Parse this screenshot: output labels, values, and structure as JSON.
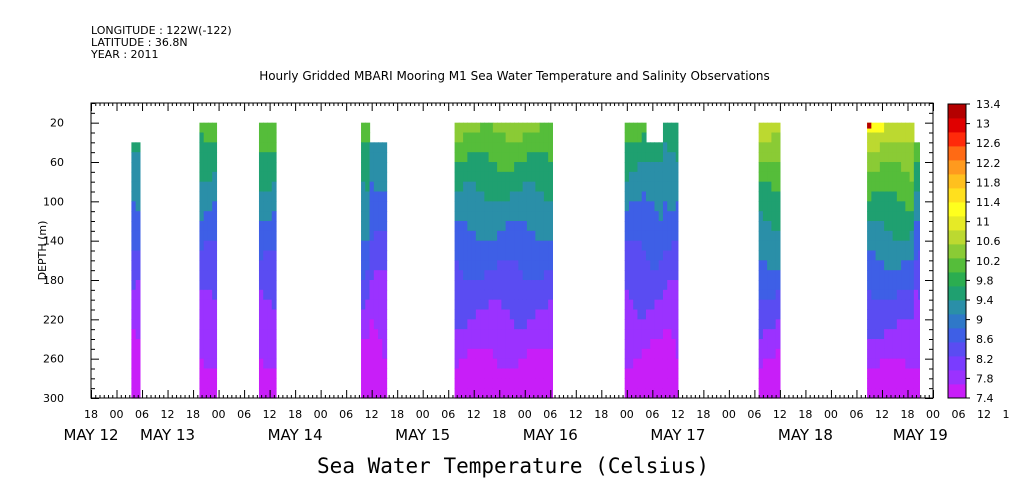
{
  "header": {
    "longitude": "LONGITUDE : 122W(-122)",
    "latitude": "LATITUDE : 36.8N",
    "year": "YEAR : 2011"
  },
  "chart_data": {
    "type": "heatmap",
    "title": "Hourly Gridded MBARI Mooring M1 Sea Water Temperature and Salinity Observations",
    "xlabel": "",
    "ylabel": "DEPTH (m)",
    "colorbar_label": "Sea Water Temperature (Celsius)",
    "x_range_hours": [
      0,
      198
    ],
    "x_hour_ticks": [
      "18",
      "00",
      "06",
      "12",
      "18",
      "00",
      "06",
      "12",
      "18",
      "00",
      "06",
      "12",
      "18",
      "00",
      "06",
      "12",
      "18",
      "00",
      "06",
      "12",
      "18",
      "00",
      "06",
      "12",
      "18",
      "00",
      "06",
      "12",
      "18",
      "00",
      "06",
      "12",
      "18",
      "00",
      "06",
      "12",
      "18"
    ],
    "x_day_labels": [
      "MAY 12",
      "MAY 13",
      "MAY 14",
      "MAY 15",
      "MAY 16",
      "MAY 17",
      "MAY 18",
      "MAY 19"
    ],
    "x_day_label_hours": [
      0,
      18,
      48,
      78,
      108,
      138,
      168,
      195
    ],
    "ylim": [
      300,
      0
    ],
    "y_ticks": [
      20,
      60,
      100,
      140,
      180,
      220,
      260,
      300
    ],
    "colorbar_levels": [
      7.4,
      7.8,
      8.2,
      8.6,
      9,
      9.4,
      9.8,
      10.2,
      10.6,
      11,
      11.4,
      11.8,
      12.2,
      12.6,
      13,
      13.4
    ],
    "colorbar_colors": [
      "#c81ef8",
      "#9b32ff",
      "#7a3cff",
      "#5a4cf2",
      "#3e5fe6",
      "#2f78c8",
      "#2a8fa8",
      "#1fa070",
      "#2bad50",
      "#55bd3a",
      "#8acb35",
      "#bcd930",
      "#e6ea26",
      "#ffff1e",
      "#ffe01e",
      "#ffc01e",
      "#ff9a1e",
      "#ff6a14",
      "#ff2a0a",
      "#e00000",
      "#b40000"
    ],
    "observation_blocks": [
      {
        "start_hour": 9.5,
        "end_hour": 11.5,
        "top_depth": 40,
        "surface_temp": 9.6
      },
      {
        "start_hour": 25.5,
        "end_hour": 29.5,
        "top_depth": 20,
        "surface_temp": 10.0
      },
      {
        "start_hour": 39.5,
        "end_hour": 43.5,
        "top_depth": 20,
        "surface_temp": 10.2
      },
      {
        "start_hour": 63.5,
        "end_hour": 65.5,
        "top_depth": 20,
        "surface_temp": 10.3
      },
      {
        "start_hour": 65.5,
        "end_hour": 69.5,
        "top_depth": 40,
        "surface_temp": 9.4
      },
      {
        "start_hour": 85.5,
        "end_hour": 108.5,
        "top_depth": 20,
        "surface_temp": 10.4
      },
      {
        "start_hour": 125.5,
        "end_hour": 130.5,
        "top_depth": 20,
        "surface_temp": 10.0
      },
      {
        "start_hour": 130.5,
        "end_hour": 134.5,
        "top_depth": 40,
        "surface_temp": 9.8
      },
      {
        "start_hour": 134.5,
        "end_hour": 138.0,
        "top_depth": 20,
        "surface_temp": 9.8
      },
      {
        "start_hour": 157.0,
        "end_hour": 162.0,
        "top_depth": 20,
        "surface_temp": 11.0
      },
      {
        "start_hour": 182.5,
        "end_hour": 193.5,
        "top_depth": 20,
        "surface_temp": 11.1
      },
      {
        "start_hour": 193.5,
        "end_hour": 194.8,
        "top_depth": 40,
        "surface_temp": 10.0
      }
    ],
    "peak_temperature": {
      "hour": 183,
      "depth": 20,
      "value": 13.2
    }
  }
}
